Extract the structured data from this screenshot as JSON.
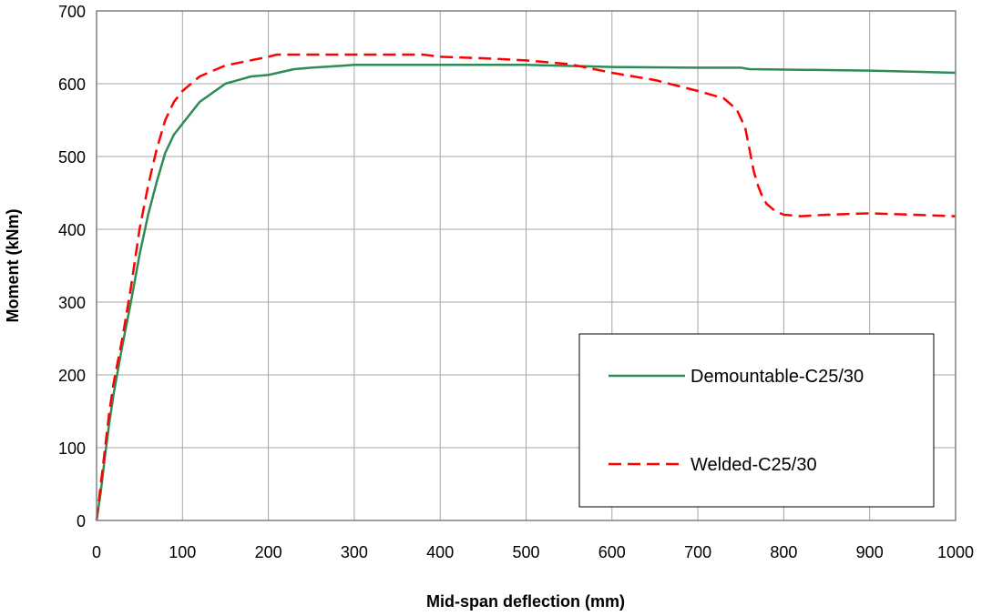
{
  "chart_data": {
    "type": "line",
    "xlabel": "Mid-span deflection (mm)",
    "ylabel": "Moment (kNm)",
    "xlim": [
      0,
      1000
    ],
    "ylim": [
      0,
      700
    ],
    "xticks": [
      0,
      100,
      200,
      300,
      400,
      500,
      600,
      700,
      800,
      900,
      1000
    ],
    "yticks": [
      0,
      100,
      200,
      300,
      400,
      500,
      600,
      700
    ],
    "grid": true,
    "legend_position": "lower-right",
    "series": [
      {
        "name": "Demountable-C25/30",
        "color": "#2e8b57",
        "style": "solid",
        "x": [
          0,
          5,
          10,
          15,
          20,
          30,
          40,
          50,
          60,
          70,
          80,
          90,
          100,
          120,
          150,
          180,
          200,
          230,
          250,
          290,
          300,
          400,
          500,
          600,
          700,
          750,
          760,
          900,
          1000
        ],
        "y": [
          0,
          40,
          90,
          135,
          175,
          240,
          300,
          365,
          420,
          465,
          505,
          530,
          545,
          575,
          600,
          610,
          612,
          620,
          622,
          625,
          626,
          626,
          626,
          623,
          622,
          622,
          620,
          618,
          615
        ]
      },
      {
        "name": "Welded-C25/30",
        "color": "#ff0000",
        "style": "dashed",
        "x": [
          0,
          5,
          10,
          15,
          20,
          30,
          40,
          50,
          60,
          70,
          80,
          90,
          100,
          120,
          150,
          200,
          210,
          300,
          380,
          400,
          450,
          500,
          550,
          600,
          650,
          700,
          730,
          745,
          755,
          760,
          765,
          770,
          775,
          780,
          790,
          800,
          820,
          850,
          900,
          950,
          1000
        ],
        "y": [
          0,
          50,
          100,
          150,
          190,
          250,
          320,
          400,
          460,
          510,
          550,
          575,
          590,
          610,
          625,
          637,
          640,
          640,
          640,
          637,
          635,
          632,
          627,
          615,
          605,
          590,
          580,
          565,
          540,
          510,
          480,
          460,
          445,
          435,
          425,
          420,
          418,
          420,
          422,
          420,
          418
        ]
      }
    ]
  }
}
